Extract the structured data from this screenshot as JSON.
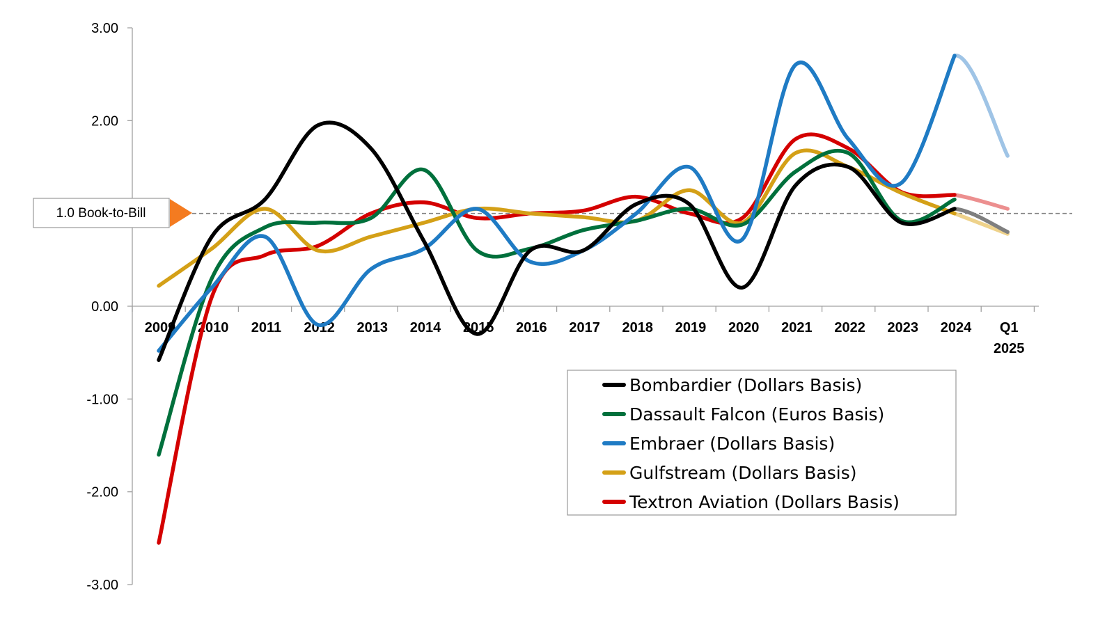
{
  "chart_data": {
    "type": "line",
    "title": "",
    "xlabel": "",
    "ylabel": "",
    "categories": [
      "2009",
      "2010",
      "2011",
      "2012",
      "2013",
      "2014",
      "2015",
      "2016",
      "2017",
      "2018",
      "2019",
      "2020",
      "2021",
      "2022",
      "2023",
      "2024",
      "Q1 2025"
    ],
    "category_lines": [
      [
        "2009"
      ],
      [
        "2010"
      ],
      [
        "2011"
      ],
      [
        "2012"
      ],
      [
        "2013"
      ],
      [
        "2014"
      ],
      [
        "2015"
      ],
      [
        "2016"
      ],
      [
        "2017"
      ],
      [
        "2018"
      ],
      [
        "2019"
      ],
      [
        "2020"
      ],
      [
        "2021"
      ],
      [
        "2022"
      ],
      [
        "2023"
      ],
      [
        "2024"
      ],
      [
        "Q1",
        "2025"
      ]
    ],
    "yticks": [
      "3.00",
      "2.00",
      "0.00",
      "-1.00",
      "-2.00",
      "-3.00"
    ],
    "ylim": [
      -3,
      3
    ],
    "reference_line": {
      "value": 1.0,
      "label": "1.0 Book-to-Bill",
      "color": "#808080"
    },
    "callout_arrow_color": "#F47B20",
    "grid": false,
    "legend_position": "bottom-right",
    "series": [
      {
        "name": "Bombardier (Dollars Basis)",
        "color": "#000000",
        "light_color": "#7f7f7f",
        "values": [
          -0.58,
          0.75,
          1.15,
          1.95,
          1.7,
          0.7,
          -0.3,
          0.6,
          0.6,
          1.1,
          1.1,
          0.2,
          1.3,
          1.5,
          0.9,
          1.05,
          0.8
        ]
      },
      {
        "name": "Dassault Falcon (Euros Basis)",
        "color": "#00703C",
        "light_color": "#7fb79d",
        "values": [
          -1.6,
          0.3,
          0.85,
          0.9,
          0.95,
          1.47,
          0.6,
          0.62,
          0.82,
          0.92,
          1.05,
          0.88,
          1.45,
          1.65,
          0.92,
          1.15,
          null
        ]
      },
      {
        "name": "Embraer (Dollars Basis)",
        "color": "#1F7BC4",
        "light_color": "#9fc4e6",
        "values": [
          -0.48,
          0.2,
          0.75,
          -0.2,
          0.4,
          0.62,
          1.05,
          0.48,
          0.6,
          1.0,
          1.5,
          0.72,
          2.6,
          1.8,
          1.33,
          2.7,
          1.62
        ]
      },
      {
        "name": "Gulfstream (Dollars Basis)",
        "color": "#D4A017",
        "light_color": "#eed28b",
        "values": [
          0.22,
          0.62,
          1.05,
          0.6,
          0.75,
          0.9,
          1.05,
          1.0,
          0.96,
          0.92,
          1.25,
          0.9,
          1.65,
          1.5,
          1.22,
          1.0,
          0.78
        ]
      },
      {
        "name": "Textron Aviation (Dollars Basis)",
        "color": "#D40000",
        "light_color": "#ec8f8f",
        "values": [
          -2.55,
          0.1,
          0.55,
          0.65,
          1.0,
          1.12,
          0.95,
          1.0,
          1.03,
          1.18,
          1.0,
          0.95,
          1.8,
          1.7,
          1.23,
          1.2,
          1.05
        ]
      }
    ]
  }
}
